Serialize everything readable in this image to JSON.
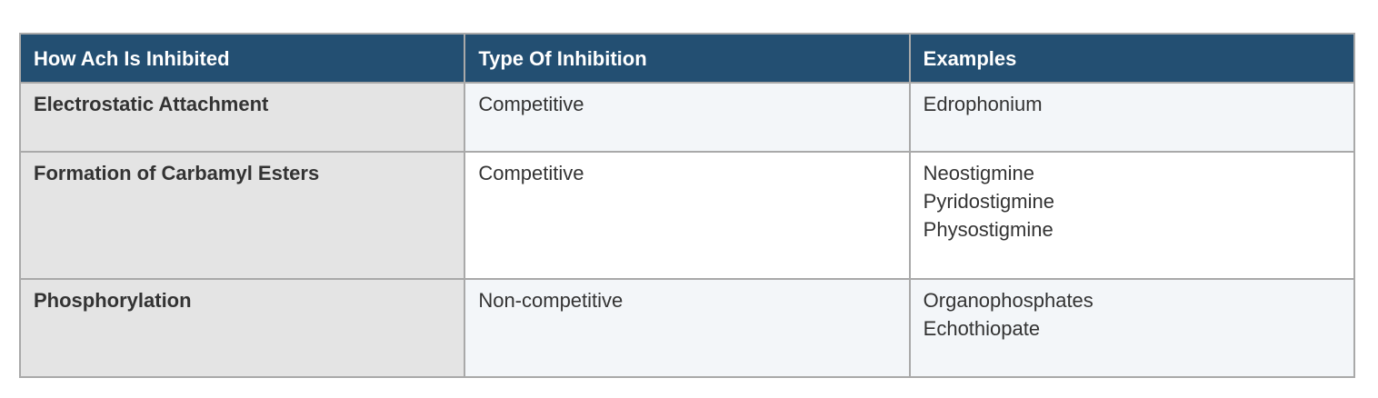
{
  "table": {
    "headers": [
      "How Ach Is Inhibited",
      "Type Of Inhibition",
      "Examples"
    ],
    "rows": [
      {
        "mechanism": "Electrostatic Attachment",
        "type": "Competitive",
        "examples": [
          "Edrophonium"
        ]
      },
      {
        "mechanism": "Formation of Carbamyl Esters",
        "type": "Competitive",
        "examples": [
          "Neostigmine",
          "Pyridostigmine",
          "Physostigmine"
        ]
      },
      {
        "mechanism": "Phosphorylation",
        "type": "Non-competitive",
        "examples": [
          "Organophosphates",
          "Echothiopate"
        ]
      }
    ]
  },
  "colors": {
    "header_bg": "#234f72",
    "first_col_bg": "#e4e4e4",
    "stripe_bg": "#f3f6f9"
  }
}
